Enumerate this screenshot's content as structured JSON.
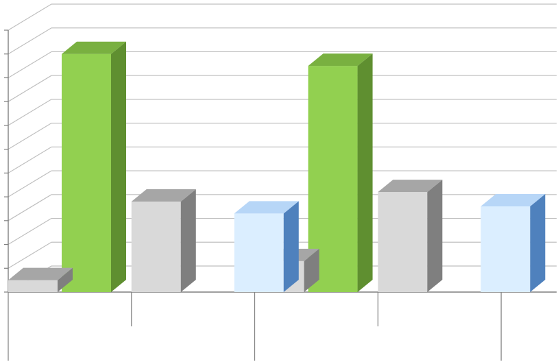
{
  "chart_data": {
    "type": "bar",
    "title": "",
    "xlabel": "",
    "ylabel": "",
    "categories": [
      "",
      "",
      "",
      ""
    ],
    "series": [
      {
        "color_front": "#92d050",
        "color_side": "#5f8f30",
        "color_top": "#79b040",
        "values": [
          10,
          null,
          9.5,
          null
        ]
      },
      {
        "color_front": "#d9d9d9",
        "color_side": "#7f7f7f",
        "color_top": "#a6a6a6",
        "values": [
          0.5,
          3.8,
          1.3,
          4.2
        ]
      },
      {
        "color_front": "#dbeeff",
        "color_side": "#4f81bd",
        "color_top": "#b7d6f7",
        "values": [
          null,
          3.3,
          null,
          3.6
        ]
      }
    ],
    "ylim": [
      0,
      11
    ],
    "grid": true,
    "legend": "none"
  }
}
